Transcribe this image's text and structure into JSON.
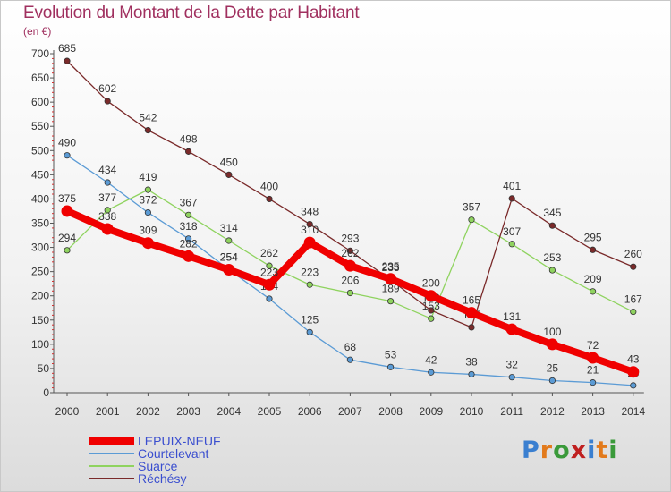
{
  "header": {
    "title": "Evolution du Montant de la Dette par Habitant",
    "unit": "(en €)"
  },
  "logo": {
    "text": "Proxiti",
    "colors": [
      "#3a7fd0",
      "#e27a1c",
      "#3a9a3a",
      "#c02020",
      "#3a7fd0",
      "#e27a1c",
      "#3a9a3a"
    ]
  },
  "chart_data": {
    "type": "line",
    "title": "Evolution du Montant de la Dette par Habitant",
    "ylabel": "(en €)",
    "xlabel": "",
    "x": [
      "2000",
      "2001",
      "2002",
      "2003",
      "2004",
      "2005",
      "2006",
      "2007",
      "2008",
      "2009",
      "2010",
      "2011",
      "2012",
      "2013",
      "2014"
    ],
    "yticks": [
      0,
      50,
      100,
      150,
      200,
      250,
      300,
      350,
      400,
      450,
      500,
      550,
      600,
      650,
      700
    ],
    "ylim": [
      0,
      700
    ],
    "grid": false,
    "legend_position": "bottom-left",
    "series": [
      {
        "name": "LEPUIX-NEUF",
        "color": "#f00000",
        "emphasis": true,
        "values": [
          375,
          338,
          309,
          282,
          254,
          223,
          310,
          262,
          235,
          200,
          165,
          131,
          100,
          72,
          43
        ]
      },
      {
        "name": "Courtelevant",
        "color": "#5b9bd5",
        "emphasis": false,
        "values": [
          490,
          434,
          372,
          318,
          254,
          194,
          125,
          68,
          53,
          42,
          38,
          32,
          25,
          21,
          15
        ]
      },
      {
        "name": "Suarce",
        "color": "#8fd35f",
        "emphasis": false,
        "values": [
          294,
          377,
          419,
          367,
          314,
          262,
          223,
          206,
          189,
          153,
          357,
          307,
          253,
          209,
          167
        ]
      },
      {
        "name": "Réchésy",
        "color": "#7a2a2a",
        "emphasis": false,
        "values": [
          685,
          602,
          542,
          498,
          450,
          400,
          348,
          293,
          233,
          170,
          135,
          401,
          345,
          295,
          260
        ]
      }
    ]
  }
}
